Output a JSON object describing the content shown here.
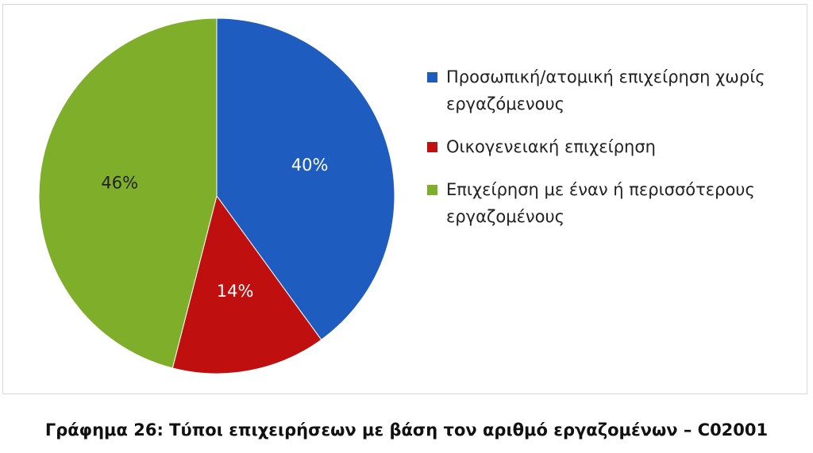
{
  "chart_data": {
    "type": "pie",
    "title": "Γράφημα 26: Τύποι επιχειρήσεων με βάση τον αριθμό εργαζομένων – C02001",
    "categories": [
      "Προσωπική/ατομική επιχείρηση χωρίς εργαζόμενους",
      "Οικογενειακή επιχείρηση",
      "Επιχείρηση με έναν ή περισσότερους εργαζομένους"
    ],
    "values": [
      40,
      14,
      46
    ],
    "value_labels": [
      "40%",
      "14%",
      "46%"
    ],
    "colors": [
      "#1f5cc0",
      "#c00f0f",
      "#7faf2a"
    ],
    "legend": "right"
  }
}
